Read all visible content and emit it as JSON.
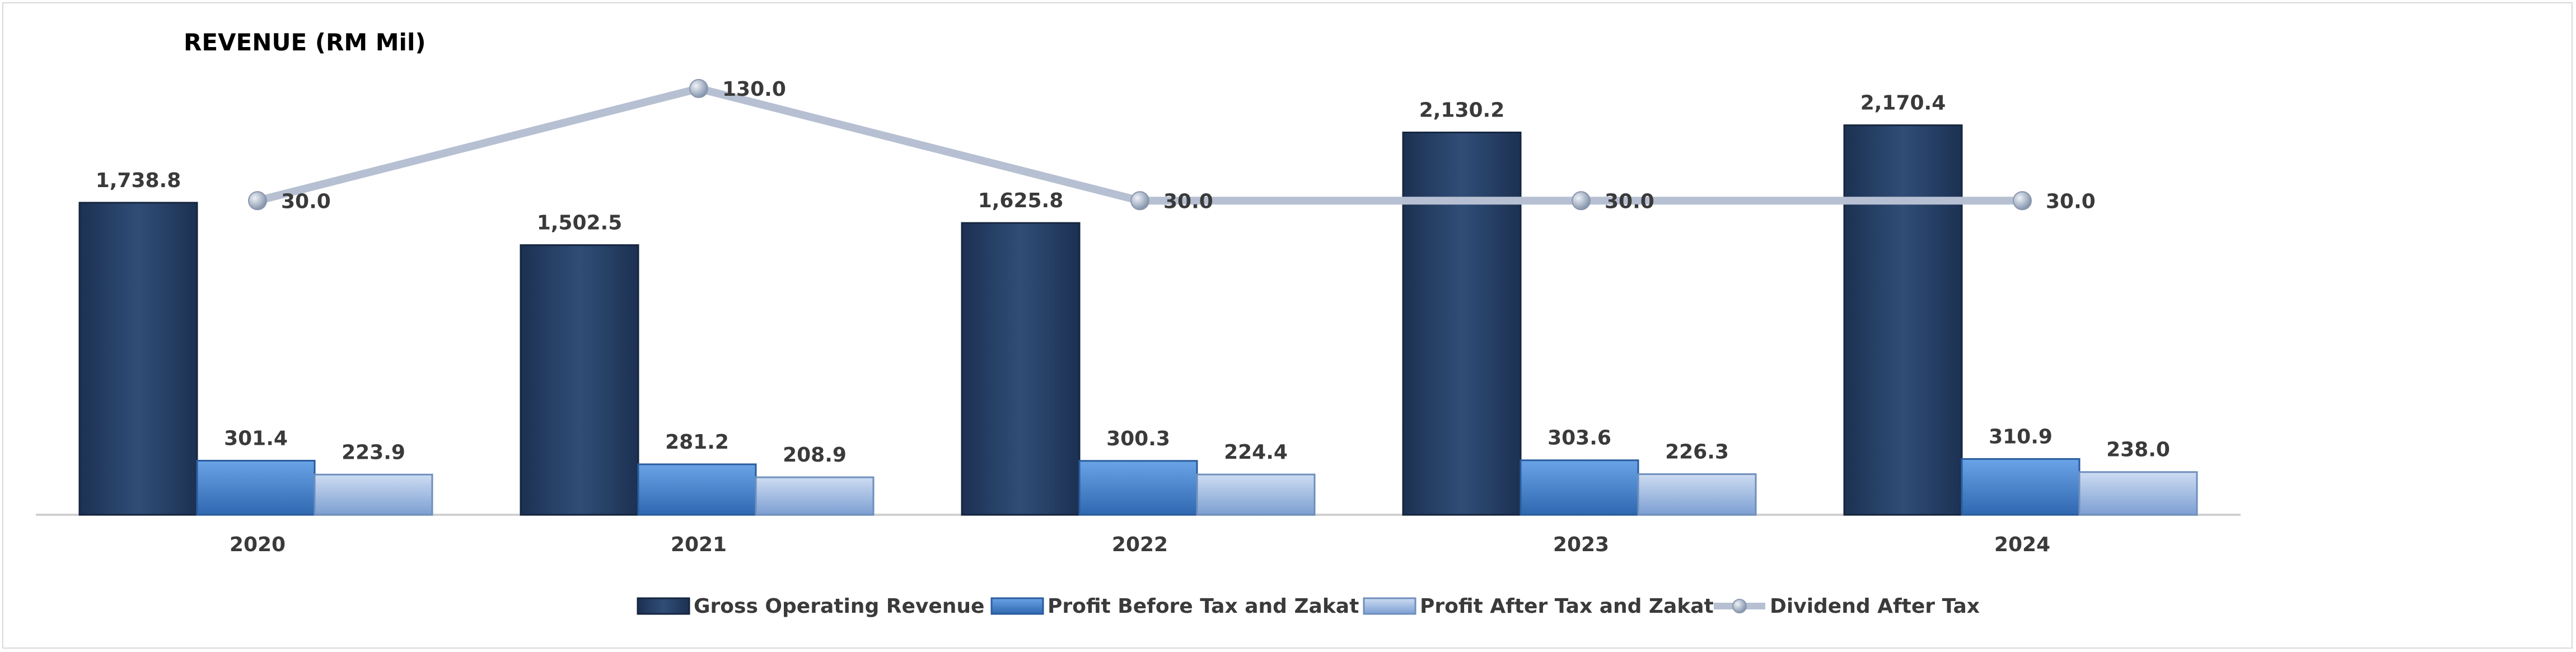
{
  "chart_data": {
    "type": "bar",
    "title": "REVENUE (RM Mil)",
    "categories": [
      "2020",
      "2021",
      "2022",
      "2023",
      "2024"
    ],
    "series": [
      {
        "name": "Gross Operating Revenue",
        "kind": "bar",
        "color": "#2a4366",
        "values": [
          1738.8,
          1502.5,
          1625.8,
          2130.2,
          2170.4
        ],
        "labels": [
          "1,738.8",
          "1,502.5",
          "1,625.8",
          "2,130.2",
          "2,170.4"
        ]
      },
      {
        "name": "Profit Before Tax and Zakat",
        "kind": "bar",
        "color": "#3c7cc7",
        "values": [
          301.4,
          281.2,
          300.3,
          303.6,
          310.9
        ],
        "labels": [
          "301.4",
          "281.2",
          "300.3",
          "303.6",
          "310.9"
        ]
      },
      {
        "name": "Profit After Tax and Zakat",
        "kind": "bar",
        "color": "#9dbbe3",
        "values": [
          223.9,
          208.9,
          224.4,
          226.3,
          238.0
        ],
        "labels": [
          "223.9",
          "208.9",
          "224.4",
          "226.3",
          "238.0"
        ]
      },
      {
        "name": "Dividend After Tax",
        "kind": "line",
        "color": "#b9c3d4",
        "values": [
          30.0,
          130.0,
          30.0,
          30.0,
          30.0
        ],
        "labels": [
          "30.0",
          "130.0",
          "30.0",
          "30.0",
          "30.0"
        ]
      }
    ],
    "xlabel": "",
    "ylabel": "",
    "ylim": [
      0,
      2500
    ],
    "ylim_secondary": [
      -250,
      150
    ],
    "grid": false,
    "legend": "bottom"
  }
}
